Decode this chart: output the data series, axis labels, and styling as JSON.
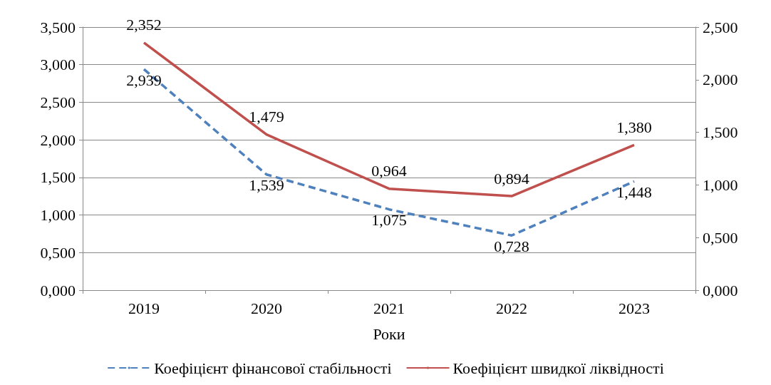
{
  "chart_data": {
    "type": "line",
    "xlabel": "Роки",
    "categories": [
      "2019",
      "2020",
      "2021",
      "2022",
      "2023"
    ],
    "series": [
      {
        "name": "Коефіцієнт фінансової стабільності",
        "color": "#4f81bd",
        "line_style": "dashed",
        "values": [
          2.939,
          1.539,
          1.075,
          0.728,
          1.448
        ],
        "value_labels": [
          "2,939",
          "1,539",
          "1,075",
          "0,728",
          "1,448"
        ]
      },
      {
        "name": "Коефіцієнт швидкої ліквідності",
        "color": "#c0504d",
        "line_style": "solid",
        "axis": "y2",
        "values": [
          2.352,
          1.479,
          0.964,
          0.894,
          1.38
        ],
        "value_labels": [
          "2,352",
          "1,479",
          "0,964",
          "0,894",
          "1,380"
        ]
      }
    ],
    "ylim": [
      0,
      3.5
    ],
    "yticks": [
      {
        "value": 0,
        "label": "0,000"
      },
      {
        "value": 0.5,
        "label": "0,500"
      },
      {
        "value": 1,
        "label": "1,000"
      },
      {
        "value": 1.5,
        "label": "1,500"
      },
      {
        "value": 2,
        "label": "2,000"
      },
      {
        "value": 2.5,
        "label": "2,500"
      },
      {
        "value": 3,
        "label": "3,000"
      },
      {
        "value": 3.5,
        "label": "3,500"
      }
    ],
    "y2lim": [
      0,
      2.5
    ],
    "y2ticks": [
      {
        "value": 0,
        "label": "0,000"
      },
      {
        "value": 0.5,
        "label": "0,500"
      },
      {
        "value": 1,
        "label": "1,000"
      },
      {
        "value": 1.5,
        "label": "1,500"
      },
      {
        "value": 2,
        "label": "2,000"
      },
      {
        "value": 2.5,
        "label": "2,500"
      }
    ],
    "grid": "y",
    "legend": "bottom",
    "marker": "none"
  }
}
